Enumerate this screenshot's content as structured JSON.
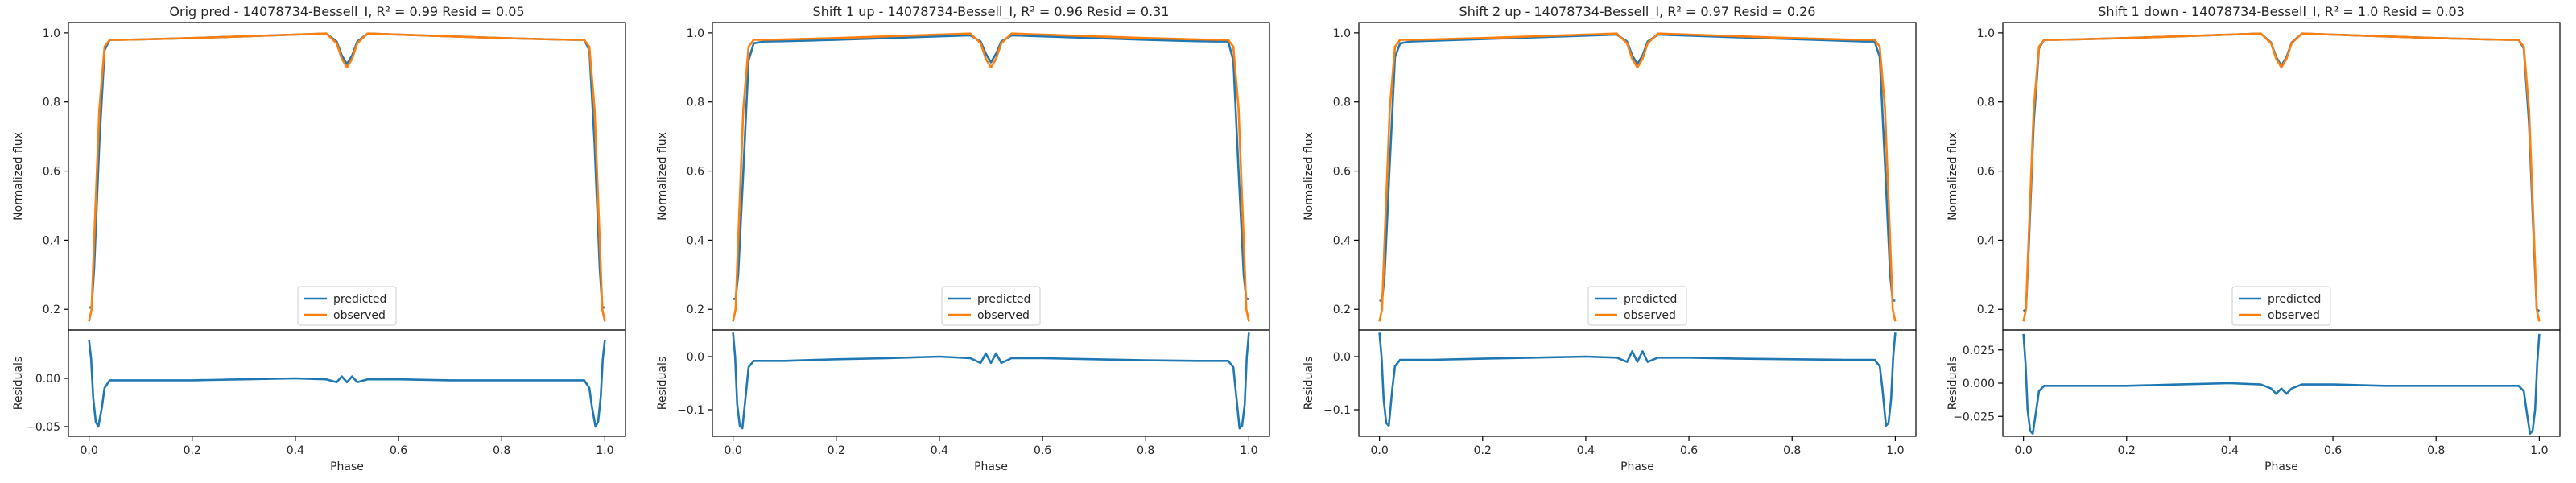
{
  "figure": {
    "background": "#ffffff"
  },
  "chart_data": [
    {
      "type": "line",
      "panel": "Orig pred",
      "title": "Orig pred - 14078734-Bessell_I, R² = 0.99 Resid = 0.05",
      "xlabel": "Phase",
      "ylabel_top": "Normalized flux",
      "ylabel_bottom": "Residuals",
      "xlim": [
        -0.04,
        1.04
      ],
      "ylim_top": [
        0.14,
        1.03
      ],
      "ylim_bottom": [
        -0.06,
        0.05
      ],
      "xticks": [
        0.0,
        0.2,
        0.4,
        0.6,
        0.8,
        1.0
      ],
      "xtick_labels": [
        "0.0",
        "0.2",
        "0.4",
        "0.6",
        "0.8",
        "1.0"
      ],
      "yticks_top": [
        0.2,
        0.4,
        0.6,
        0.8,
        1.0
      ],
      "ytick_labels_top": [
        "0.2",
        "0.4",
        "0.6",
        "0.8",
        "1.0"
      ],
      "yticks_bottom": [
        -0.05,
        0.0
      ],
      "ytick_labels_bottom": [
        "−0.05",
        "0.00"
      ],
      "legend_position": "bottom-center",
      "grid": false,
      "series": [
        {
          "name": "predicted",
          "color": "#1f77b4",
          "x": [
            0.0,
            0.005,
            0.01,
            0.02,
            0.03,
            0.04,
            0.06,
            0.1,
            0.2,
            0.3,
            0.4,
            0.46,
            0.48,
            0.49,
            0.5,
            0.51,
            0.52,
            0.54,
            0.6,
            0.7,
            0.8,
            0.9,
            0.94,
            0.96,
            0.97,
            0.98,
            0.99,
            0.995,
            1.0
          ],
          "y": [
            0.205,
            0.205,
            0.32,
            0.68,
            0.95,
            0.98,
            0.98,
            0.981,
            0.985,
            0.99,
            0.995,
            0.998,
            0.975,
            0.935,
            0.91,
            0.935,
            0.975,
            0.998,
            0.995,
            0.99,
            0.985,
            0.981,
            0.98,
            0.98,
            0.95,
            0.68,
            0.32,
            0.205,
            0.205
          ]
        },
        {
          "name": "observed",
          "color": "#ff7f0e",
          "x": [
            0.0,
            0.005,
            0.01,
            0.02,
            0.03,
            0.04,
            0.06,
            0.1,
            0.2,
            0.3,
            0.4,
            0.46,
            0.48,
            0.49,
            0.5,
            0.51,
            0.52,
            0.54,
            0.6,
            0.7,
            0.8,
            0.9,
            0.94,
            0.96,
            0.97,
            0.98,
            0.99,
            0.995,
            1.0
          ],
          "y": [
            0.165,
            0.2,
            0.4,
            0.78,
            0.96,
            0.98,
            0.98,
            0.981,
            0.985,
            0.99,
            0.995,
            0.998,
            0.97,
            0.925,
            0.9,
            0.925,
            0.97,
            0.998,
            0.995,
            0.99,
            0.985,
            0.981,
            0.98,
            0.98,
            0.96,
            0.78,
            0.4,
            0.2,
            0.165
          ]
        }
      ],
      "residuals": {
        "color": "#1f77b4",
        "x": [
          0.0,
          0.004,
          0.008,
          0.013,
          0.018,
          0.025,
          0.03,
          0.04,
          0.1,
          0.2,
          0.3,
          0.4,
          0.46,
          0.48,
          0.49,
          0.5,
          0.51,
          0.52,
          0.54,
          0.6,
          0.7,
          0.8,
          0.9,
          0.96,
          0.97,
          0.975,
          0.982,
          0.987,
          0.992,
          0.996,
          1.0
        ],
        "y": [
          0.04,
          0.02,
          -0.02,
          -0.045,
          -0.05,
          -0.03,
          -0.01,
          -0.002,
          -0.002,
          -0.002,
          -0.001,
          0.0,
          -0.001,
          -0.004,
          0.002,
          -0.004,
          0.002,
          -0.004,
          -0.001,
          -0.001,
          -0.002,
          -0.002,
          -0.002,
          -0.002,
          -0.01,
          -0.03,
          -0.05,
          -0.045,
          -0.02,
          0.02,
          0.04
        ]
      }
    },
    {
      "type": "line",
      "panel": "Shift 1 up",
      "title": "Shift 1 up - 14078734-Bessell_I, R² = 0.96 Resid = 0.31",
      "xlabel": "Phase",
      "ylabel_top": "Normalized flux",
      "ylabel_bottom": "Residuals",
      "xlim": [
        -0.04,
        1.04
      ],
      "ylim_top": [
        0.14,
        1.03
      ],
      "ylim_bottom": [
        -0.15,
        0.05
      ],
      "xticks": [
        0.0,
        0.2,
        0.4,
        0.6,
        0.8,
        1.0
      ],
      "xtick_labels": [
        "0.0",
        "0.2",
        "0.4",
        "0.6",
        "0.8",
        "1.0"
      ],
      "yticks_top": [
        0.2,
        0.4,
        0.6,
        0.8,
        1.0
      ],
      "ytick_labels_top": [
        "0.2",
        "0.4",
        "0.6",
        "0.8",
        "1.0"
      ],
      "yticks_bottom": [
        -0.1,
        0.0
      ],
      "ytick_labels_bottom": [
        "−0.1",
        "0.0"
      ],
      "legend_position": "bottom-center",
      "grid": false,
      "series": [
        {
          "name": "predicted",
          "color": "#1f77b4",
          "x": [
            0.0,
            0.005,
            0.01,
            0.02,
            0.03,
            0.04,
            0.06,
            0.1,
            0.2,
            0.3,
            0.4,
            0.46,
            0.48,
            0.49,
            0.5,
            0.51,
            0.52,
            0.54,
            0.6,
            0.7,
            0.8,
            0.9,
            0.94,
            0.96,
            0.97,
            0.98,
            0.99,
            0.995,
            1.0
          ],
          "y": [
            0.23,
            0.23,
            0.3,
            0.6,
            0.92,
            0.97,
            0.975,
            0.976,
            0.98,
            0.985,
            0.99,
            0.993,
            0.975,
            0.94,
            0.915,
            0.94,
            0.975,
            0.993,
            0.99,
            0.985,
            0.98,
            0.976,
            0.975,
            0.975,
            0.92,
            0.6,
            0.3,
            0.23,
            0.23
          ]
        },
        {
          "name": "observed",
          "color": "#ff7f0e",
          "x": [
            0.0,
            0.005,
            0.01,
            0.02,
            0.03,
            0.04,
            0.06,
            0.1,
            0.2,
            0.3,
            0.4,
            0.46,
            0.48,
            0.49,
            0.5,
            0.51,
            0.52,
            0.54,
            0.6,
            0.7,
            0.8,
            0.9,
            0.94,
            0.96,
            0.97,
            0.98,
            0.99,
            0.995,
            1.0
          ],
          "y": [
            0.165,
            0.2,
            0.4,
            0.78,
            0.96,
            0.98,
            0.98,
            0.981,
            0.985,
            0.99,
            0.995,
            0.998,
            0.97,
            0.925,
            0.9,
            0.925,
            0.97,
            0.998,
            0.995,
            0.99,
            0.985,
            0.981,
            0.98,
            0.98,
            0.96,
            0.78,
            0.4,
            0.2,
            0.165
          ]
        }
      ],
      "residuals": {
        "color": "#1f77b4",
        "x": [
          0.0,
          0.004,
          0.008,
          0.013,
          0.018,
          0.025,
          0.03,
          0.04,
          0.1,
          0.2,
          0.3,
          0.4,
          0.46,
          0.48,
          0.49,
          0.5,
          0.51,
          0.52,
          0.54,
          0.6,
          0.7,
          0.8,
          0.9,
          0.96,
          0.97,
          0.975,
          0.982,
          0.987,
          0.992,
          0.996,
          1.0
        ],
        "y": [
          0.045,
          0.0,
          -0.09,
          -0.13,
          -0.135,
          -0.07,
          -0.02,
          -0.008,
          -0.008,
          -0.005,
          -0.003,
          0.0,
          -0.003,
          -0.012,
          0.006,
          -0.012,
          0.006,
          -0.012,
          -0.003,
          -0.003,
          -0.005,
          -0.007,
          -0.008,
          -0.008,
          -0.02,
          -0.07,
          -0.135,
          -0.13,
          -0.09,
          0.0,
          0.045
        ]
      }
    },
    {
      "type": "line",
      "panel": "Shift 2 up",
      "title": "Shift 2 up - 14078734-Bessell_I, R² = 0.97 Resid = 0.26",
      "xlabel": "Phase",
      "ylabel_top": "Normalized flux",
      "ylabel_bottom": "Residuals",
      "xlim": [
        -0.04,
        1.04
      ],
      "ylim_top": [
        0.14,
        1.03
      ],
      "ylim_bottom": [
        -0.15,
        0.05
      ],
      "xticks": [
        0.0,
        0.2,
        0.4,
        0.6,
        0.8,
        1.0
      ],
      "xtick_labels": [
        "0.0",
        "0.2",
        "0.4",
        "0.6",
        "0.8",
        "1.0"
      ],
      "yticks_top": [
        0.2,
        0.4,
        0.6,
        0.8,
        1.0
      ],
      "ytick_labels_top": [
        "0.2",
        "0.4",
        "0.6",
        "0.8",
        "1.0"
      ],
      "yticks_bottom": [
        -0.1,
        0.0
      ],
      "ytick_labels_bottom": [
        "−0.1",
        "0.0"
      ],
      "legend_position": "bottom-center",
      "grid": false,
      "series": [
        {
          "name": "predicted",
          "color": "#1f77b4",
          "x": [
            0.0,
            0.005,
            0.01,
            0.02,
            0.03,
            0.04,
            0.06,
            0.1,
            0.2,
            0.3,
            0.4,
            0.46,
            0.48,
            0.49,
            0.5,
            0.51,
            0.52,
            0.54,
            0.6,
            0.7,
            0.8,
            0.9,
            0.94,
            0.96,
            0.97,
            0.98,
            0.99,
            0.995,
            1.0
          ],
          "y": [
            0.225,
            0.225,
            0.3,
            0.62,
            0.93,
            0.97,
            0.975,
            0.977,
            0.982,
            0.987,
            0.992,
            0.995,
            0.975,
            0.935,
            0.91,
            0.935,
            0.975,
            0.995,
            0.992,
            0.987,
            0.982,
            0.977,
            0.975,
            0.975,
            0.93,
            0.62,
            0.3,
            0.225,
            0.225
          ]
        },
        {
          "name": "observed",
          "color": "#ff7f0e",
          "x": [
            0.0,
            0.005,
            0.01,
            0.02,
            0.03,
            0.04,
            0.06,
            0.1,
            0.2,
            0.3,
            0.4,
            0.46,
            0.48,
            0.49,
            0.5,
            0.51,
            0.52,
            0.54,
            0.6,
            0.7,
            0.8,
            0.9,
            0.94,
            0.96,
            0.97,
            0.98,
            0.99,
            0.995,
            1.0
          ],
          "y": [
            0.165,
            0.2,
            0.4,
            0.78,
            0.96,
            0.98,
            0.98,
            0.981,
            0.985,
            0.99,
            0.995,
            0.998,
            0.97,
            0.925,
            0.9,
            0.925,
            0.97,
            0.998,
            0.995,
            0.99,
            0.985,
            0.981,
            0.98,
            0.98,
            0.96,
            0.78,
            0.4,
            0.2,
            0.165
          ]
        }
      ],
      "residuals": {
        "color": "#1f77b4",
        "x": [
          0.0,
          0.004,
          0.008,
          0.013,
          0.018,
          0.025,
          0.03,
          0.04,
          0.1,
          0.2,
          0.3,
          0.4,
          0.46,
          0.48,
          0.49,
          0.5,
          0.51,
          0.52,
          0.54,
          0.6,
          0.7,
          0.8,
          0.9,
          0.96,
          0.97,
          0.975,
          0.982,
          0.987,
          0.992,
          0.996,
          1.0
        ],
        "y": [
          0.045,
          0.0,
          -0.08,
          -0.125,
          -0.13,
          -0.06,
          -0.018,
          -0.006,
          -0.006,
          -0.004,
          -0.002,
          0.0,
          -0.002,
          -0.01,
          0.01,
          -0.01,
          0.01,
          -0.01,
          -0.002,
          -0.002,
          -0.004,
          -0.005,
          -0.006,
          -0.006,
          -0.018,
          -0.06,
          -0.13,
          -0.125,
          -0.08,
          0.0,
          0.045
        ]
      }
    },
    {
      "type": "line",
      "panel": "Shift 1 down",
      "title": "Shift 1 down - 14078734-Bessell_I, R² = 1.0 Resid = 0.03",
      "xlabel": "Phase",
      "ylabel_top": "Normalized flux",
      "ylabel_bottom": "Residuals",
      "xlim": [
        -0.04,
        1.04
      ],
      "ylim_top": [
        0.14,
        1.03
      ],
      "ylim_bottom": [
        -0.04,
        0.04
      ],
      "xticks": [
        0.0,
        0.2,
        0.4,
        0.6,
        0.8,
        1.0
      ],
      "xtick_labels": [
        "0.0",
        "0.2",
        "0.4",
        "0.6",
        "0.8",
        "1.0"
      ],
      "yticks_top": [
        0.2,
        0.4,
        0.6,
        0.8,
        1.0
      ],
      "ytick_labels_top": [
        "0.2",
        "0.4",
        "0.6",
        "0.8",
        "1.0"
      ],
      "yticks_bottom": [
        -0.025,
        0.0,
        0.025
      ],
      "ytick_labels_bottom": [
        "−0.025",
        "0.000",
        "0.025"
      ],
      "legend_position": "bottom-center",
      "grid": false,
      "series": [
        {
          "name": "predicted",
          "color": "#1f77b4",
          "x": [
            0.0,
            0.005,
            0.01,
            0.02,
            0.03,
            0.04,
            0.06,
            0.1,
            0.2,
            0.3,
            0.4,
            0.46,
            0.48,
            0.49,
            0.5,
            0.51,
            0.52,
            0.54,
            0.6,
            0.7,
            0.8,
            0.9,
            0.94,
            0.96,
            0.97,
            0.98,
            0.99,
            0.995,
            1.0
          ],
          "y": [
            0.195,
            0.2,
            0.37,
            0.74,
            0.955,
            0.98,
            0.98,
            0.981,
            0.985,
            0.99,
            0.995,
            0.998,
            0.972,
            0.93,
            0.905,
            0.93,
            0.972,
            0.998,
            0.995,
            0.99,
            0.985,
            0.981,
            0.98,
            0.98,
            0.955,
            0.74,
            0.37,
            0.2,
            0.195
          ]
        },
        {
          "name": "observed",
          "color": "#ff7f0e",
          "x": [
            0.0,
            0.005,
            0.01,
            0.02,
            0.03,
            0.04,
            0.06,
            0.1,
            0.2,
            0.3,
            0.4,
            0.46,
            0.48,
            0.49,
            0.5,
            0.51,
            0.52,
            0.54,
            0.6,
            0.7,
            0.8,
            0.9,
            0.94,
            0.96,
            0.97,
            0.98,
            0.99,
            0.995,
            1.0
          ],
          "y": [
            0.165,
            0.2,
            0.4,
            0.78,
            0.96,
            0.98,
            0.98,
            0.981,
            0.985,
            0.99,
            0.995,
            0.998,
            0.97,
            0.925,
            0.9,
            0.925,
            0.97,
            0.998,
            0.995,
            0.99,
            0.985,
            0.981,
            0.98,
            0.98,
            0.96,
            0.78,
            0.4,
            0.2,
            0.165
          ]
        }
      ],
      "residuals": {
        "color": "#1f77b4",
        "x": [
          0.0,
          0.004,
          0.008,
          0.013,
          0.018,
          0.025,
          0.03,
          0.04,
          0.1,
          0.2,
          0.3,
          0.4,
          0.46,
          0.48,
          0.49,
          0.5,
          0.51,
          0.52,
          0.54,
          0.6,
          0.7,
          0.8,
          0.9,
          0.96,
          0.97,
          0.975,
          0.982,
          0.987,
          0.992,
          0.996,
          1.0
        ],
        "y": [
          0.037,
          0.015,
          -0.02,
          -0.036,
          -0.038,
          -0.02,
          -0.006,
          -0.002,
          -0.002,
          -0.002,
          -0.001,
          0.0,
          -0.001,
          -0.004,
          -0.008,
          -0.004,
          -0.008,
          -0.004,
          -0.001,
          -0.001,
          -0.002,
          -0.002,
          -0.002,
          -0.002,
          -0.006,
          -0.02,
          -0.038,
          -0.036,
          -0.02,
          0.015,
          0.037
        ]
      }
    }
  ]
}
